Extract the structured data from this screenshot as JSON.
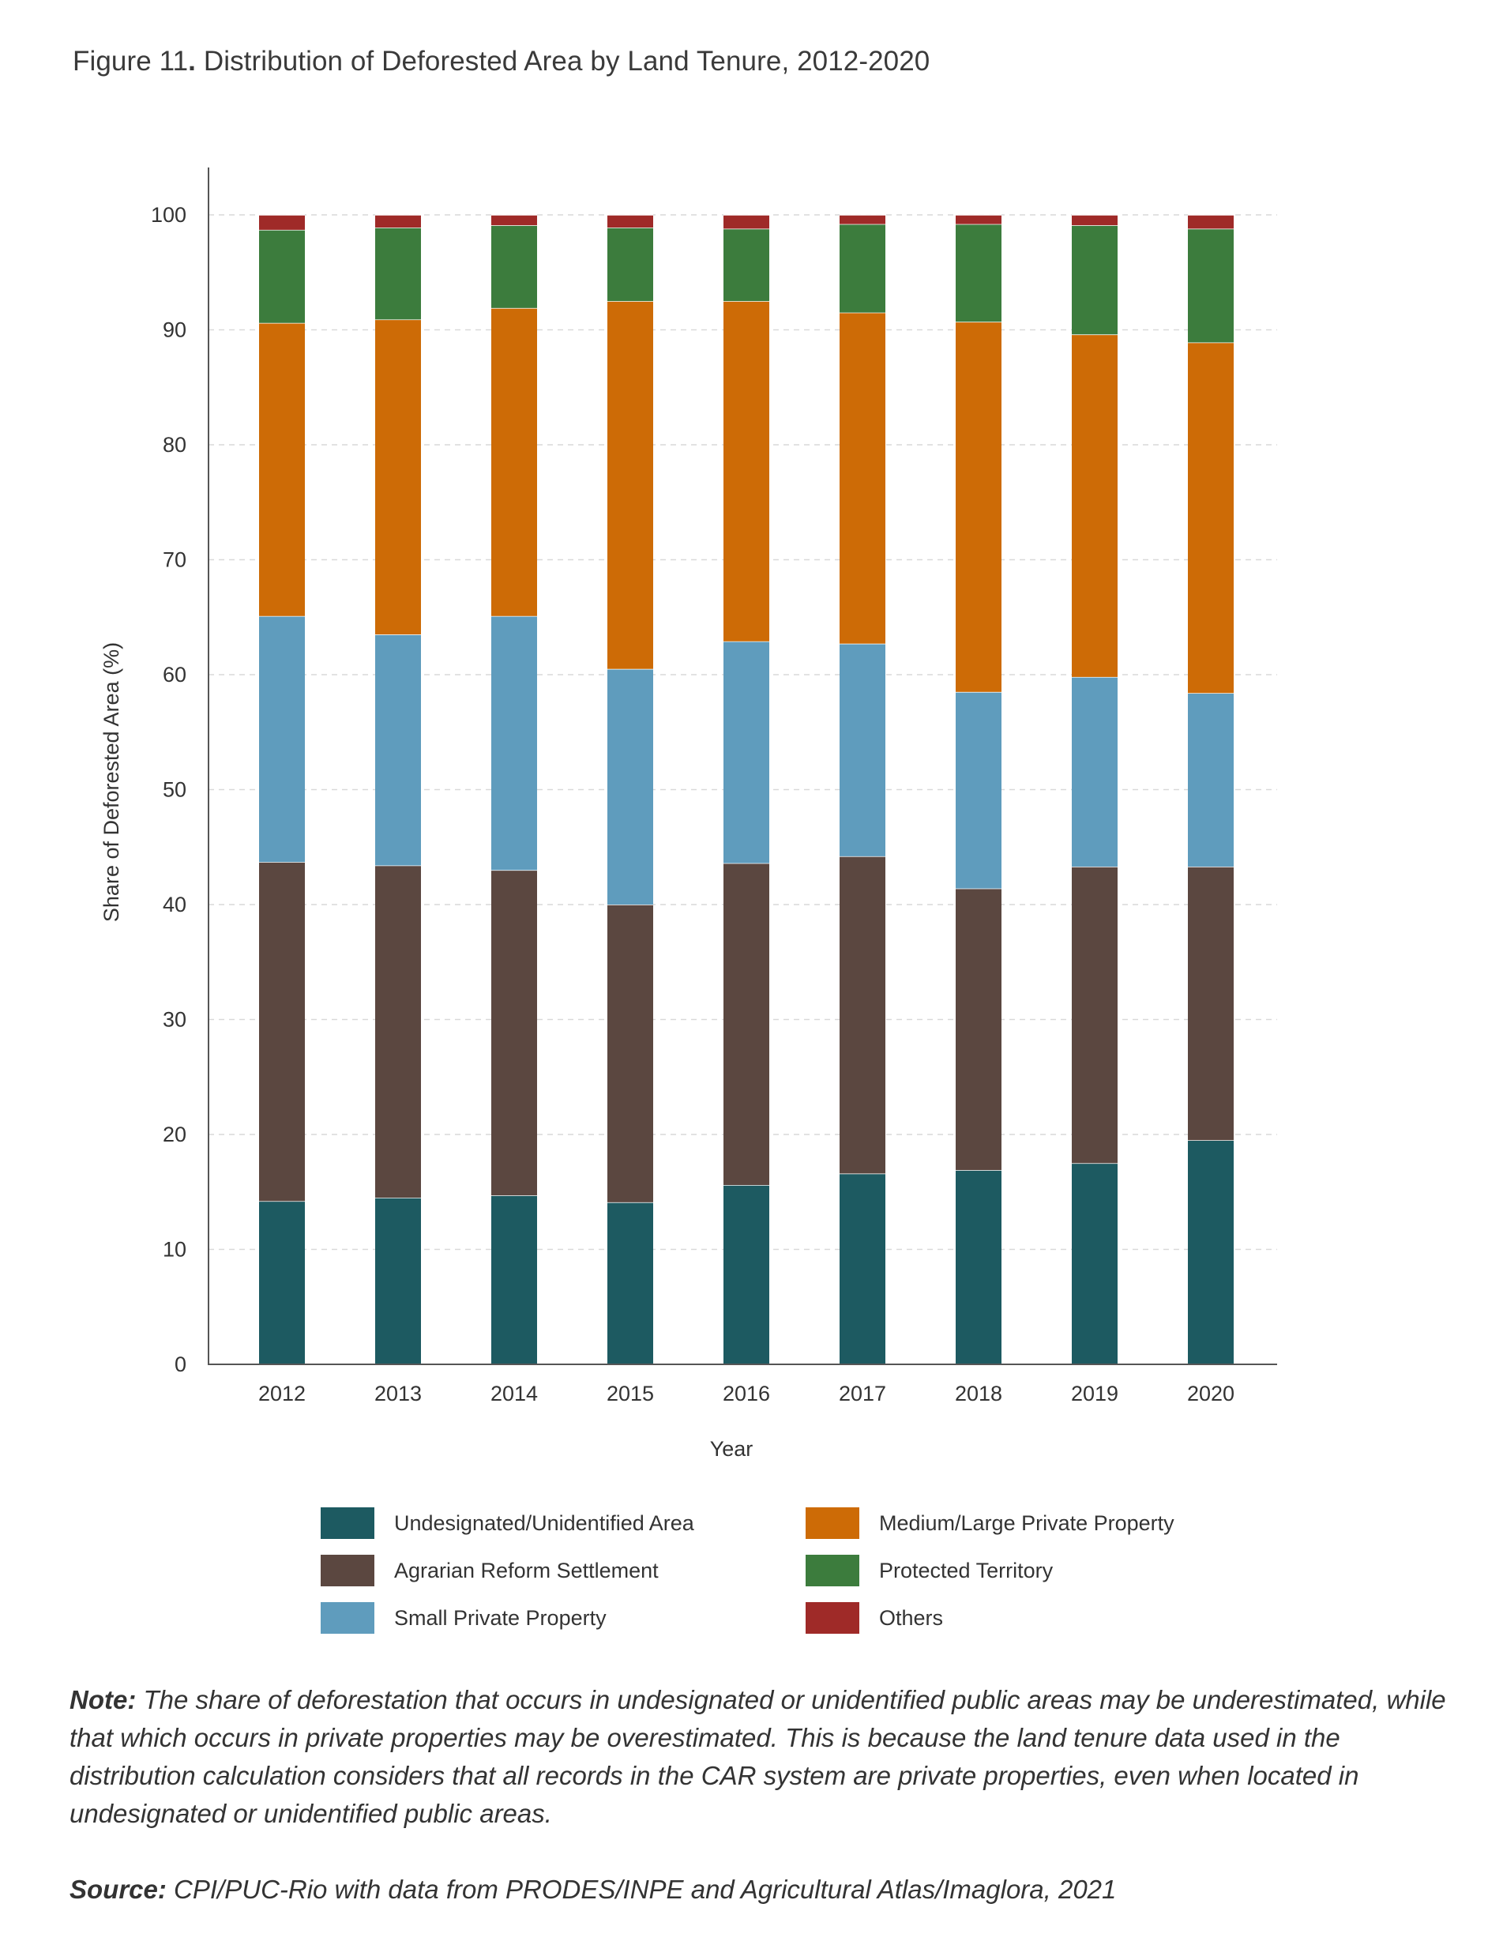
{
  "figure": {
    "title_prefix": "Figure 11",
    "title_dot": ".",
    "title_rest": " Distribution of Deforested Area by Land Tenure, 2012-2020"
  },
  "chart_data": {
    "type": "bar",
    "stacked": true,
    "categories": [
      "2012",
      "2013",
      "2014",
      "2015",
      "2016",
      "2017",
      "2018",
      "2019",
      "2020"
    ],
    "xlabel": "Year",
    "ylabel": "Share of Deforested Area (%)",
    "ylim": [
      0,
      100
    ],
    "yticks": [
      0,
      10,
      20,
      30,
      40,
      50,
      60,
      70,
      80,
      90,
      100
    ],
    "grid": "horizontal dashed",
    "legend_position": "bottom",
    "series": [
      {
        "name": "Undesignated/Unidentified Area",
        "color": "#1d5a61",
        "values": [
          14.2,
          14.5,
          14.7,
          14.1,
          15.6,
          16.6,
          16.9,
          17.5,
          19.5
        ]
      },
      {
        "name": "Agrarian Reform Settlement",
        "color": "#5b4740",
        "values": [
          29.5,
          28.9,
          28.3,
          25.9,
          28.0,
          27.6,
          24.5,
          25.8,
          23.8
        ]
      },
      {
        "name": "Small Private Property",
        "color": "#5f9cbd",
        "values": [
          21.4,
          20.1,
          22.1,
          20.5,
          19.3,
          18.5,
          17.1,
          16.5,
          15.1
        ]
      },
      {
        "name": "Medium/Large Private Property",
        "color": "#cd6b06",
        "values": [
          25.5,
          27.4,
          26.8,
          32.0,
          29.6,
          28.8,
          32.2,
          29.8,
          30.5
        ]
      },
      {
        "name": "Protected Territory",
        "color": "#3c7c3d",
        "values": [
          8.1,
          8.0,
          7.2,
          6.4,
          6.3,
          7.7,
          8.5,
          9.5,
          9.9
        ]
      },
      {
        "name": "Others",
        "color": "#9f2a28",
        "values": [
          1.3,
          1.1,
          0.9,
          1.1,
          1.2,
          0.8,
          0.8,
          0.9,
          1.2
        ]
      }
    ]
  },
  "note": {
    "lead": "Note:",
    "text": " The share of deforestation that occurs in undesignated or unidentified public areas may be underestimated, while that which occurs in private properties may be overestimated. This is because the land tenure data used in the distribution calculation considers that all records in the CAR system are private properties, even when located in undesignated or unidentified public areas."
  },
  "source": {
    "lead": "Source:",
    "text": " CPI/PUC-Rio with data from PRODES/INPE and Agricultural Atlas/Imaglora, 2021"
  }
}
